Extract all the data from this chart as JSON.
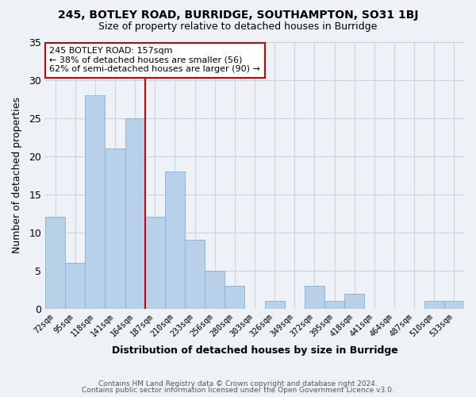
{
  "title": "245, BOTLEY ROAD, BURRIDGE, SOUTHAMPTON, SO31 1BJ",
  "subtitle": "Size of property relative to detached houses in Burridge",
  "xlabel": "Distribution of detached houses by size in Burridge",
  "ylabel": "Number of detached properties",
  "bar_color": "#b8d0e8",
  "bar_edge_color": "#8aafd0",
  "categories": [
    "72sqm",
    "95sqm",
    "118sqm",
    "141sqm",
    "164sqm",
    "187sqm",
    "210sqm",
    "233sqm",
    "256sqm",
    "280sqm",
    "303sqm",
    "326sqm",
    "349sqm",
    "372sqm",
    "395sqm",
    "418sqm",
    "441sqm",
    "464sqm",
    "487sqm",
    "510sqm",
    "533sqm"
  ],
  "values": [
    12,
    6,
    28,
    21,
    25,
    12,
    18,
    9,
    5,
    3,
    0,
    1,
    0,
    3,
    1,
    2,
    0,
    0,
    0,
    1,
    1
  ],
  "vline_index": 4,
  "vline_color": "#cc0000",
  "ylim": [
    0,
    35
  ],
  "yticks": [
    0,
    5,
    10,
    15,
    20,
    25,
    30,
    35
  ],
  "annotation_title": "245 BOTLEY ROAD: 157sqm",
  "annotation_line1": "← 38% of detached houses are smaller (56)",
  "annotation_line2": "62% of semi-detached houses are larger (90) →",
  "annotation_box_color": "#ffffff",
  "annotation_box_edge": "#cc0000",
  "footer1": "Contains HM Land Registry data © Crown copyright and database right 2024.",
  "footer2": "Contains public sector information licensed under the Open Government Licence v3.0.",
  "background_color": "#eef2f7",
  "grid_color": "#c8d4e0",
  "plot_bg_color": "#eef2f7"
}
